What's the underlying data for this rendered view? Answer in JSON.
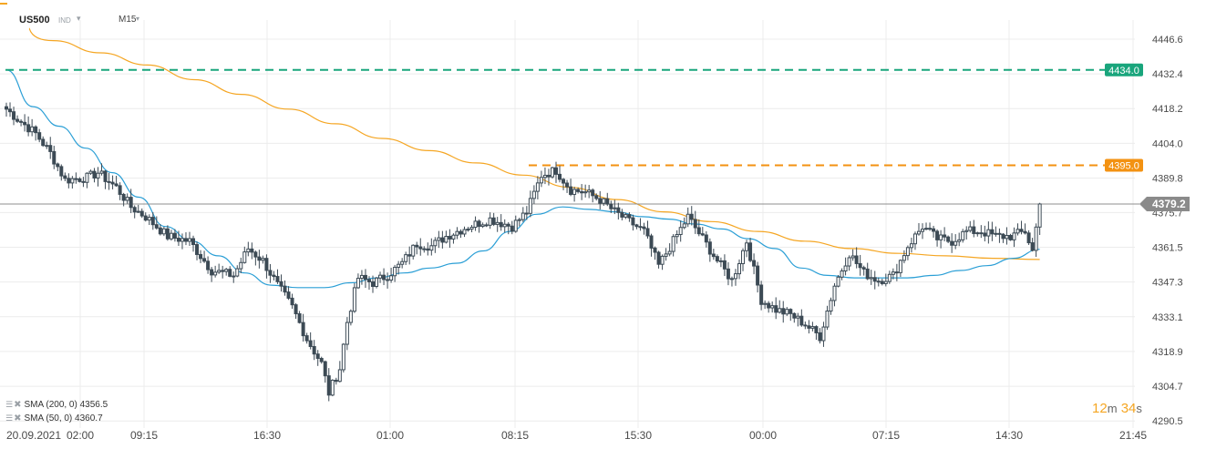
{
  "header": {
    "symbol": "US500",
    "instrument_type": "IND",
    "timeframe": "M15"
  },
  "legend": [
    {
      "text": "SMA (200, 0) 4356.5",
      "color": "#f5a623"
    },
    {
      "text": "SMA (50, 0) 4360.7",
      "color": "#2b9fd6"
    }
  ],
  "countdown": {
    "minutes": "12",
    "minutes_unit": "m",
    "seconds": "34",
    "seconds_unit": "s"
  },
  "colors": {
    "candle_body": "#3c4a55",
    "sma200": "#f5a623",
    "sma50": "#2b9fd6",
    "resistance_high": "#19a57c",
    "resistance_mid": "#f39212",
    "current_price_line": "#8f8f8f",
    "grid": "#ececec",
    "axis_text": "#4a4a4a"
  },
  "chart_data": {
    "type": "candlestick",
    "x_axis": {
      "labels": [
        "20.09.2021",
        "02:00",
        "09:15",
        "16:30",
        "01:00",
        "08:15",
        "15:30",
        "00:00",
        "07:15",
        "14:30",
        "21:45"
      ]
    },
    "y_axis": {
      "ticks": [
        "4446.6",
        "4432.4",
        "4418.2",
        "4404.0",
        "4389.8",
        "4375.7",
        "4361.5",
        "4347.3",
        "4333.1",
        "4318.9",
        "4304.7",
        "4290.5"
      ],
      "range": [
        4287.6,
        4454.4
      ]
    },
    "levels": [
      {
        "value": 4434.0,
        "label": "4434.0",
        "color": "#19a57c",
        "style": "dashed"
      },
      {
        "value": 4395.0,
        "label": "4395.0",
        "color": "#f39212",
        "style": "dashed"
      },
      {
        "value": 4379.2,
        "label": "4379.2",
        "color": "#8f8f8f",
        "style": "solid",
        "tag": "current"
      }
    ],
    "indicators": [
      {
        "name": "SMA (200, 0)",
        "value": 4356.5
      },
      {
        "name": "SMA (50, 0)",
        "value": 4360.7
      }
    ],
    "sma200": [
      4451,
      4446,
      4441,
      4436,
      4430,
      4424,
      4418,
      4412,
      4406,
      4401,
      4396,
      4391,
      4386,
      4381,
      4376,
      4372,
      4368,
      4364,
      4361,
      4359,
      4358,
      4357,
      4356.5
    ],
    "sma50": [
      4434,
      4419,
      4411,
      4402,
      4392,
      4382,
      4370,
      4364,
      4358,
      4351,
      4346,
      4345,
      4345,
      4347,
      4349,
      4351,
      4353,
      4355,
      4360,
      4368,
      4375,
      4378,
      4377,
      4376,
      4374,
      4373,
      4371,
      4369,
      4365,
      4361,
      4353,
      4350,
      4349,
      4349,
      4349,
      4350,
      4352,
      4354,
      4357,
      4360.7
    ],
    "anchors": [
      [
        0,
        4418
      ],
      [
        3,
        4414
      ],
      [
        8,
        4408
      ],
      [
        12,
        4400
      ],
      [
        16,
        4389
      ],
      [
        22,
        4390
      ],
      [
        25,
        4392
      ],
      [
        30,
        4386
      ],
      [
        34,
        4378
      ],
      [
        38,
        4374
      ],
      [
        44,
        4366
      ],
      [
        50,
        4364
      ],
      [
        56,
        4352
      ],
      [
        62,
        4350
      ],
      [
        66,
        4361
      ],
      [
        70,
        4356
      ],
      [
        74,
        4346
      ],
      [
        78,
        4337
      ],
      [
        82,
        4324
      ],
      [
        86,
        4314
      ],
      [
        88,
        4302
      ],
      [
        91,
        4312
      ],
      [
        93,
        4331
      ],
      [
        96,
        4349
      ],
      [
        100,
        4347
      ],
      [
        104,
        4350
      ],
      [
        108,
        4355
      ],
      [
        112,
        4363
      ],
      [
        116,
        4362
      ],
      [
        120,
        4366
      ],
      [
        126,
        4370
      ],
      [
        132,
        4373
      ],
      [
        138,
        4370
      ],
      [
        142,
        4376
      ],
      [
        146,
        4391
      ],
      [
        150,
        4393
      ],
      [
        154,
        4385
      ],
      [
        158,
        4384
      ],
      [
        162,
        4381
      ],
      [
        166,
        4376
      ],
      [
        170,
        4372
      ],
      [
        174,
        4368
      ],
      [
        178,
        4354
      ],
      [
        182,
        4364
      ],
      [
        186,
        4374
      ],
      [
        190,
        4365
      ],
      [
        194,
        4356
      ],
      [
        198,
        4348
      ],
      [
        202,
        4364
      ],
      [
        206,
        4340
      ],
      [
        210,
        4336
      ],
      [
        214,
        4334
      ],
      [
        218,
        4330
      ],
      [
        222,
        4325
      ],
      [
        226,
        4346
      ],
      [
        230,
        4359
      ],
      [
        234,
        4351
      ],
      [
        238,
        4348
      ],
      [
        242,
        4350
      ],
      [
        246,
        4362
      ],
      [
        250,
        4370
      ],
      [
        254,
        4365
      ],
      [
        258,
        4364
      ],
      [
        262,
        4368
      ],
      [
        266,
        4368
      ],
      [
        270,
        4366
      ],
      [
        274,
        4366
      ],
      [
        278,
        4368
      ],
      [
        280,
        4360
      ],
      [
        282,
        4379
      ]
    ]
  }
}
